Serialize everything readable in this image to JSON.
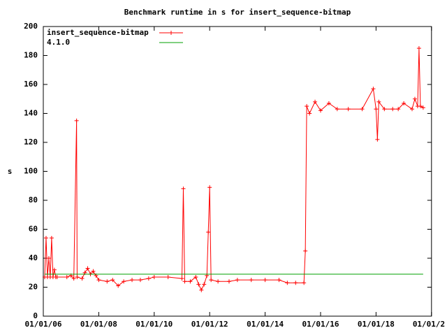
{
  "chart_data": {
    "type": "line",
    "title": "Benchmark runtime in s for insert_sequence-bitmap",
    "y_label": "s",
    "xlim": [
      2006,
      2020
    ],
    "xticks": [
      {
        "value": 2006,
        "label": "01/01/06"
      },
      {
        "value": 2008,
        "label": "01/01/08"
      },
      {
        "value": 2010,
        "label": "01/01/10"
      },
      {
        "value": 2012,
        "label": "01/01/12"
      },
      {
        "value": 2014,
        "label": "01/01/14"
      },
      {
        "value": 2016,
        "label": "01/01/16"
      },
      {
        "value": 2018,
        "label": "01/01/18"
      },
      {
        "value": 2020,
        "label": "01/01/2"
      }
    ],
    "ylim": [
      0,
      200
    ],
    "yticks": [
      0,
      20,
      40,
      60,
      80,
      100,
      120,
      140,
      160,
      180,
      200
    ],
    "legend": "top-left",
    "series": [
      {
        "name": "insert_sequence-bitmap",
        "color": "#ff0000",
        "markers": true,
        "x": [
          2006.05,
          2006.1,
          2006.15,
          2006.2,
          2006.25,
          2006.3,
          2006.35,
          2006.4,
          2006.45,
          2006.5,
          2006.85,
          2007.0,
          2007.1,
          2007.2,
          2007.22,
          2007.4,
          2007.5,
          2007.6,
          2007.7,
          2007.8,
          2007.9,
          2008.0,
          2008.3,
          2008.5,
          2008.7,
          2008.9,
          2009.2,
          2009.5,
          2009.8,
          2010.0,
          2010.5,
          2011.0,
          2011.05,
          2011.1,
          2011.3,
          2011.5,
          2011.6,
          2011.7,
          2011.8,
          2011.9,
          2011.95,
          2012.0,
          2012.05,
          2012.3,
          2012.7,
          2013.0,
          2013.5,
          2014.0,
          2014.5,
          2014.8,
          2015.1,
          2015.4,
          2015.45,
          2015.5,
          2015.6,
          2015.8,
          2016.0,
          2016.3,
          2016.6,
          2017.0,
          2017.5,
          2017.9,
          2018.0,
          2018.05,
          2018.1,
          2018.3,
          2018.6,
          2018.8,
          2019.0,
          2019.3,
          2019.4,
          2019.5,
          2019.55,
          2019.6,
          2019.7
        ],
        "values": [
          27,
          54,
          27,
          40,
          27,
          54,
          27,
          32,
          27,
          27,
          27,
          28,
          26,
          135,
          27,
          26,
          30,
          33,
          29,
          31,
          28,
          25,
          24,
          25,
          21,
          24,
          25,
          25,
          26,
          27,
          27,
          26,
          88,
          24,
          24,
          27,
          22,
          18,
          22,
          28,
          58,
          89,
          25,
          24,
          24,
          25,
          25,
          25,
          25,
          23,
          23,
          23,
          45,
          145,
          140,
          148,
          142,
          147,
          143,
          143,
          143,
          157,
          143,
          122,
          148,
          143,
          143,
          143,
          147,
          143,
          150,
          145,
          185,
          145,
          144
        ]
      },
      {
        "name": "4.1.0",
        "color": "#00a000",
        "markers": false,
        "x": [
          2006.05,
          2019.7
        ],
        "values": [
          29,
          29
        ]
      }
    ]
  }
}
